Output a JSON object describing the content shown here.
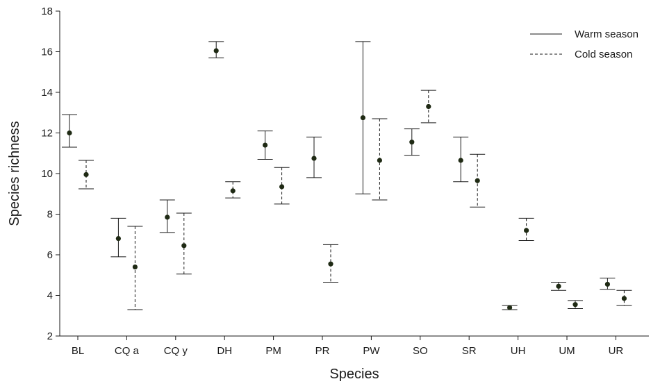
{
  "chart_data": {
    "type": "errorbar",
    "title": "",
    "xlabel": "Species",
    "ylabel": "Species richness",
    "ylim": [
      2,
      18
    ],
    "yticks": [
      2,
      4,
      6,
      8,
      10,
      12,
      14,
      16,
      18
    ],
    "categories": [
      "BL",
      "CQ a",
      "CQ y",
      "DH",
      "PM",
      "PR",
      "PW",
      "SO",
      "SR",
      "UH",
      "UM",
      "UR"
    ],
    "legend_position": "top-right",
    "grid": false,
    "series": [
      {
        "name": "Warm season",
        "line_style": "solid",
        "points": [
          {
            "mean": 12.0,
            "low": 11.3,
            "high": 12.9
          },
          {
            "mean": 6.8,
            "low": 5.9,
            "high": 7.8
          },
          {
            "mean": 7.85,
            "low": 7.1,
            "high": 8.7
          },
          {
            "mean": 16.05,
            "low": 15.7,
            "high": 16.5
          },
          {
            "mean": 11.4,
            "low": 10.7,
            "high": 12.1
          },
          {
            "mean": 10.75,
            "low": 9.8,
            "high": 11.8
          },
          {
            "mean": 12.75,
            "low": 9.0,
            "high": 16.5
          },
          {
            "mean": 11.55,
            "low": 10.9,
            "high": 12.2
          },
          {
            "mean": 10.65,
            "low": 9.6,
            "high": 11.8
          },
          {
            "mean": 3.4,
            "low": 3.3,
            "high": 3.5
          },
          {
            "mean": 4.45,
            "low": 4.25,
            "high": 4.65
          },
          {
            "mean": 4.55,
            "low": 4.3,
            "high": 4.85
          }
        ]
      },
      {
        "name": "Cold season",
        "line_style": "dashed",
        "points": [
          {
            "mean": 9.95,
            "low": 9.25,
            "high": 10.65
          },
          {
            "mean": 5.4,
            "low": 3.3,
            "high": 7.4
          },
          {
            "mean": 6.45,
            "low": 5.05,
            "high": 8.05
          },
          {
            "mean": 9.15,
            "low": 8.8,
            "high": 9.6
          },
          {
            "mean": 9.35,
            "low": 8.5,
            "high": 10.3
          },
          {
            "mean": 5.55,
            "low": 4.65,
            "high": 6.5
          },
          {
            "mean": 10.65,
            "low": 8.7,
            "high": 12.7
          },
          {
            "mean": 13.3,
            "low": 12.5,
            "high": 14.1
          },
          {
            "mean": 9.65,
            "low": 8.35,
            "high": 10.95
          },
          {
            "mean": 7.2,
            "low": 6.7,
            "high": 7.8
          },
          {
            "mean": 3.55,
            "low": 3.35,
            "high": 3.75
          },
          {
            "mean": 3.85,
            "low": 3.5,
            "high": 4.25
          }
        ]
      }
    ]
  }
}
